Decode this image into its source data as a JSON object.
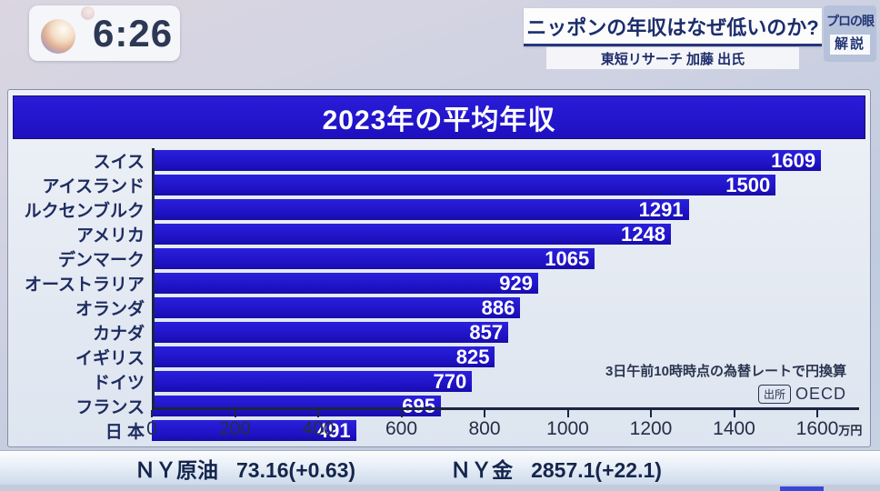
{
  "clock": {
    "time": "6:26"
  },
  "program_header": {
    "title": "ニッポンの年収はなぜ低いのか?",
    "subtitle": "東短リサーチ 加藤 出氏",
    "corner_badge": {
      "segment": "プロの眼",
      "label": "解説"
    }
  },
  "chart_data": {
    "type": "bar",
    "orientation": "horizontal",
    "title": "2023年の平均年収",
    "categories": [
      "スイス",
      "アイスランド",
      "ルクセンブルク",
      "アメリカ",
      "デンマーク",
      "オーストラリア",
      "オランダ",
      "カナダ",
      "イギリス",
      "ドイツ",
      "フランス",
      "日 本"
    ],
    "values": [
      1609,
      1500,
      1291,
      1248,
      1065,
      929,
      886,
      857,
      825,
      770,
      695,
      491
    ],
    "unit": "万円",
    "xlim": [
      0,
      1600
    ],
    "x_ticks": [
      0,
      200,
      400,
      600,
      800,
      1000,
      1200,
      1400,
      1600
    ],
    "grid": false,
    "note": "3日午前10時時点の為替レートで円換算",
    "source_label": "出所",
    "source": "OECD"
  },
  "ticker": {
    "items": [
      {
        "label": "ＮＹ原油",
        "value": "73.16(+0.63)"
      },
      {
        "label": "ＮＹ金",
        "value": "2857.1(+22.1)"
      }
    ]
  },
  "colors": {
    "bar_blue": "#1f12c4",
    "banner_blue": "#2315ce",
    "navy_text": "#1c2d6b",
    "value_text": "#ffffff"
  }
}
